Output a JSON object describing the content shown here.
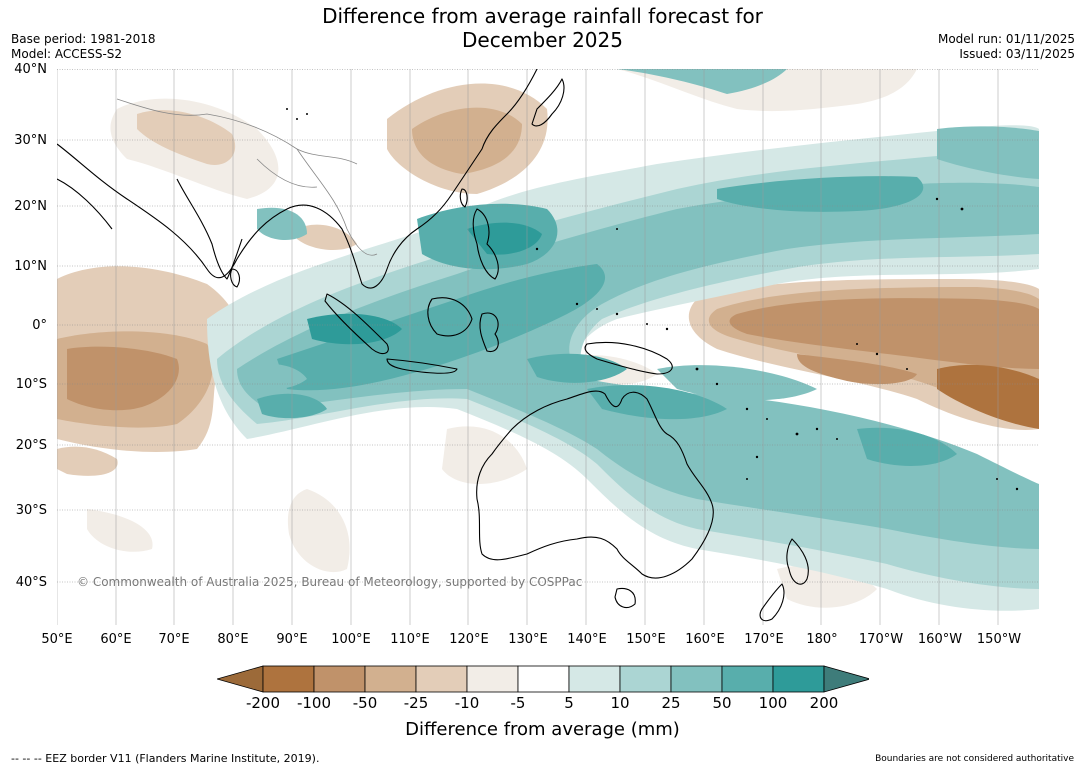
{
  "title": {
    "line1": "Difference from average rainfall forecast for",
    "line2": "December 2025"
  },
  "meta_left": {
    "base_period": "Base period: 1981-2018",
    "model": "Model: ACCESS-S2"
  },
  "meta_right": {
    "model_run": "Model run: 01/11/2025",
    "issued": "Issued: 03/11/2025"
  },
  "lat_labels": [
    "40°N",
    "30°N",
    "20°N",
    "10°N",
    "0°",
    "10°S",
    "20°S",
    "30°S",
    "40°S"
  ],
  "lon_labels": [
    "50°E",
    "60°E",
    "70°E",
    "80°E",
    "90°E",
    "100°E",
    "110°E",
    "120°E",
    "130°E",
    "140°E",
    "150°E",
    "160°E",
    "170°E",
    "180°",
    "170°W",
    "160°W",
    "150°W"
  ],
  "copyright": "© Commonwealth of Australia 2025, Bureau of Meteorology, supported by COSPPac",
  "colorbar": {
    "ticks": [
      "-200",
      "-100",
      "-50",
      "-25",
      "-10",
      "-5",
      "5",
      "10",
      "25",
      "50",
      "100",
      "200"
    ],
    "colors": [
      "#9c6a39",
      "#ae733e",
      "#c0926a",
      "#d2b08f",
      "#e3cdb8",
      "#f2ede7",
      "#ffffff",
      "#d5e8e6",
      "#abd5d3",
      "#82c1bf",
      "#58aeac",
      "#2e9b99",
      "#3e7c7a"
    ],
    "title": "Difference from average (mm)"
  },
  "footer": {
    "eez": "--  --  -- EEZ border V11 (Flanders Marine Institute, 2019).",
    "boundaries": "Boundaries are not considered authoritative"
  }
}
